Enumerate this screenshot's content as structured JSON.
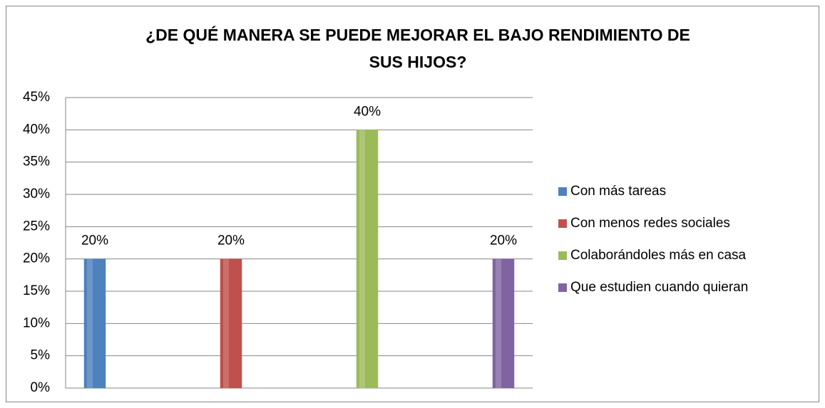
{
  "chart_data": {
    "type": "bar",
    "title": "¿DE QUÉ MANERA SE PUEDE MEJORAR EL BAJO RENDIMIENTO DE SUS HIJOS?",
    "categories": [
      null
    ],
    "series": [
      {
        "name": "Con más tareas",
        "color": "#4f81bd",
        "values": [
          20
        ],
        "value_labels": [
          "20%"
        ]
      },
      {
        "name": "Con menos redes sociales",
        "color": "#c0504d",
        "values": [
          20
        ],
        "value_labels": [
          "20%"
        ]
      },
      {
        "name": "Colaborándoles más en casa",
        "color": "#9bbb59",
        "values": [
          40
        ],
        "value_labels": [
          "40%"
        ]
      },
      {
        "name": "Que estudien cuando quieran",
        "color": "#8064a2",
        "values": [
          20
        ],
        "value_labels": [
          "20%"
        ]
      }
    ],
    "ylim": [
      0,
      45
    ],
    "yticks": [
      {
        "value": 0,
        "label": "0%"
      },
      {
        "value": 5,
        "label": "5%"
      },
      {
        "value": 10,
        "label": "10%"
      },
      {
        "value": 15,
        "label": "15%"
      },
      {
        "value": 20,
        "label": "20%"
      },
      {
        "value": 25,
        "label": "25%"
      },
      {
        "value": 30,
        "label": "30%"
      },
      {
        "value": 35,
        "label": "35%"
      },
      {
        "value": 40,
        "label": "40%"
      },
      {
        "value": 45,
        "label": "45%"
      }
    ],
    "grid": true,
    "legend": "right"
  }
}
